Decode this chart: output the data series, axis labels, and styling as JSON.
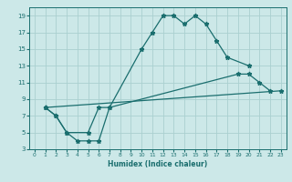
{
  "xlabel": "Humidex (Indice chaleur)",
  "ylabel": "",
  "bg_color": "#cce8e8",
  "grid_color": "#aad0d0",
  "line_color": "#1a6e6e",
  "xlim": [
    -0.5,
    23.5
  ],
  "ylim": [
    3,
    20
  ],
  "xticks": [
    0,
    1,
    2,
    3,
    4,
    5,
    6,
    7,
    8,
    9,
    10,
    11,
    12,
    13,
    14,
    15,
    16,
    17,
    18,
    19,
    20,
    21,
    22,
    23
  ],
  "yticks": [
    3,
    5,
    7,
    9,
    11,
    13,
    15,
    17,
    19
  ],
  "line1_x": [
    1,
    2,
    3,
    4,
    5,
    6,
    7,
    10,
    11,
    12,
    13,
    14,
    15,
    16,
    17,
    18,
    20
  ],
  "line1_y": [
    8,
    7,
    5,
    4,
    4,
    4,
    8,
    15,
    17,
    19,
    19,
    18,
    19,
    18,
    16,
    14,
    13
  ],
  "line2_x": [
    1,
    2,
    3,
    5,
    6,
    7,
    19,
    20,
    21,
    22
  ],
  "line2_y": [
    8,
    7,
    5,
    5,
    8,
    8,
    12,
    12,
    11,
    10
  ],
  "line3_x": [
    1,
    23
  ],
  "line3_y": [
    8,
    10
  ]
}
